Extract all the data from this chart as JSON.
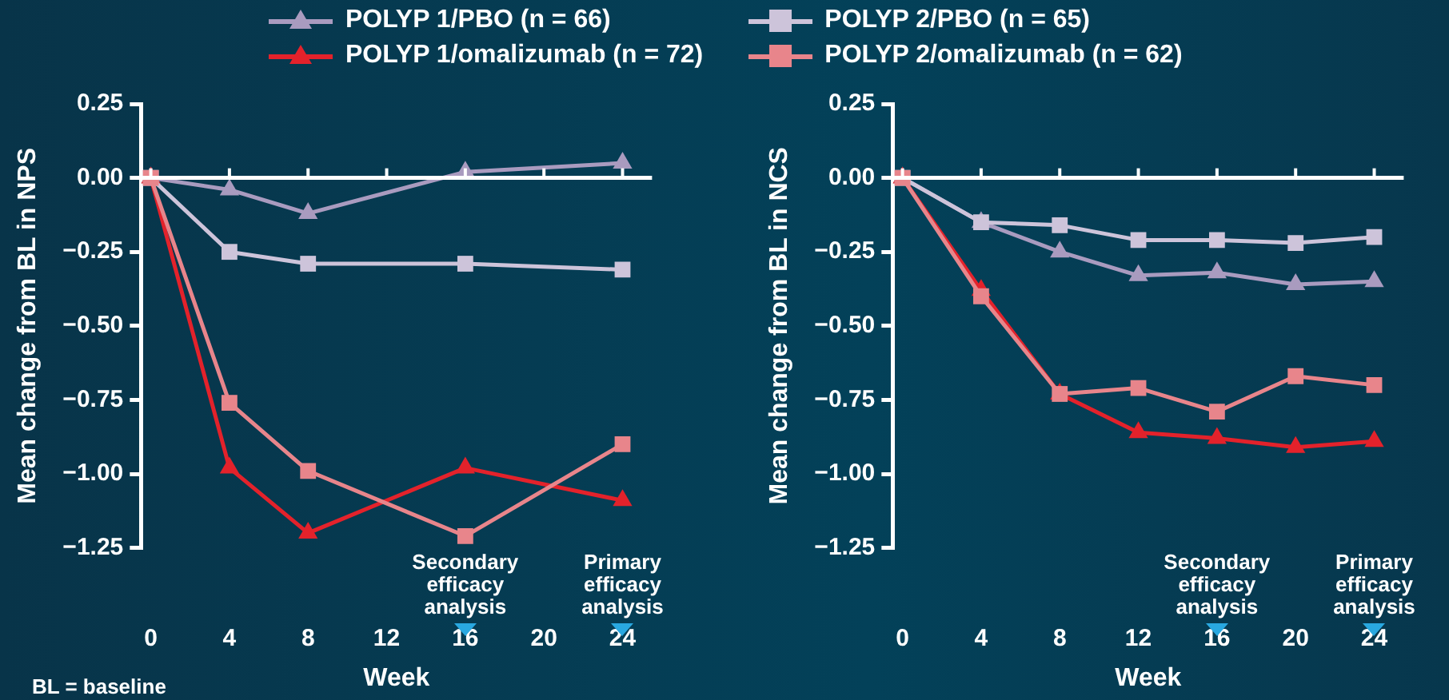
{
  "chart_data": [
    {
      "type": "line",
      "xlabel": "Week",
      "ylabel": "Mean change from BL in NPS",
      "x": [
        0,
        4,
        8,
        16,
        24
      ],
      "xlim": [
        -0.5,
        25.5
      ],
      "xticks": [
        0,
        4,
        8,
        12,
        16,
        20,
        24
      ],
      "ylim": [
        -1.25,
        0.25
      ],
      "yticks": [
        {
          "value": 0.25,
          "label": "0.25"
        },
        {
          "value": 0,
          "label": "0.00"
        },
        {
          "value": -0.25,
          "label": "−0.25"
        },
        {
          "value": -0.5,
          "label": "−0.50"
        },
        {
          "value": -0.75,
          "label": "−0.75"
        },
        {
          "value": -1,
          "label": "−1.00"
        },
        {
          "value": -1.25,
          "label": "−1.25"
        }
      ],
      "grid": false,
      "legend": "top",
      "line_style": "solid",
      "series": [
        {
          "name": "POLYP 1/PBO (n = 66)",
          "color": "#a99bbf",
          "marker": "triangle",
          "values": [
            0,
            -0.04,
            -0.12,
            0.02,
            0.05
          ]
        },
        {
          "name": "POLYP 1/omalizumab (n = 72)",
          "color": "#e3222b",
          "marker": "triangle",
          "values": [
            0,
            -0.98,
            -1.2,
            -0.98,
            -1.09
          ]
        },
        {
          "name": "POLYP 2/PBO (n = 65)",
          "color": "#cdc4da",
          "marker": "square",
          "values": [
            0,
            -0.25,
            -0.29,
            -0.29,
            -0.31
          ]
        },
        {
          "name": "POLYP 2/omalizumab (n = 62)",
          "color": "#e8858b",
          "marker": "square",
          "values": [
            0,
            -0.76,
            -0.99,
            -1.21,
            -0.9
          ]
        }
      ],
      "ref_lines": [
        {
          "axis": "y",
          "value": 0,
          "color": "#ffffff"
        }
      ],
      "annotations": [
        "Secondary efficacy analysis",
        "Primary efficacy analysis",
        "BL = baseline"
      ]
    },
    {
      "type": "line",
      "xlabel": "Week",
      "ylabel": "Mean change from BL in NCS",
      "x": [
        0,
        4,
        8,
        12,
        16,
        20,
        24
      ],
      "xlim": [
        -0.5,
        25.5
      ],
      "xticks": [
        0,
        4,
        8,
        12,
        16,
        20,
        24
      ],
      "ylim": [
        -1.25,
        0.25
      ],
      "yticks": [
        {
          "value": 0.25,
          "label": "0.25"
        },
        {
          "value": 0,
          "label": "0.00"
        },
        {
          "value": -0.25,
          "label": "−0.25"
        },
        {
          "value": -0.5,
          "label": "−0.50"
        },
        {
          "value": -0.75,
          "label": "−0.75"
        },
        {
          "value": -1,
          "label": "−1.00"
        },
        {
          "value": -1.25,
          "label": "−1.25"
        }
      ],
      "grid": false,
      "legend": "top",
      "line_style": "solid",
      "series": [
        {
          "name": "POLYP 1/PBO (n = 66)",
          "color": "#a99bbf",
          "marker": "triangle",
          "values": [
            0,
            -0.15,
            -0.25,
            -0.33,
            -0.32,
            -0.36,
            -0.35
          ]
        },
        {
          "name": "POLYP 1/omalizumab (n = 72)",
          "color": "#e3222b",
          "marker": "triangle",
          "values": [
            0,
            -0.38,
            -0.73,
            -0.86,
            -0.88,
            -0.91,
            -0.89
          ]
        },
        {
          "name": "POLYP 2/PBO (n = 65)",
          "color": "#cdc4da",
          "marker": "square",
          "values": [
            0,
            -0.15,
            -0.16,
            -0.21,
            -0.21,
            -0.22,
            -0.2
          ]
        },
        {
          "name": "POLYP 2/omalizumab (n = 62)",
          "color": "#e8858b",
          "marker": "square",
          "values": [
            0,
            -0.4,
            -0.73,
            -0.71,
            -0.79,
            -0.67,
            -0.7
          ]
        }
      ],
      "ref_lines": [
        {
          "axis": "y",
          "value": 0,
          "color": "#ffffff"
        }
      ],
      "annotations": [
        "Secondary efficacy analysis",
        "Primary efficacy analysis"
      ]
    }
  ]
}
